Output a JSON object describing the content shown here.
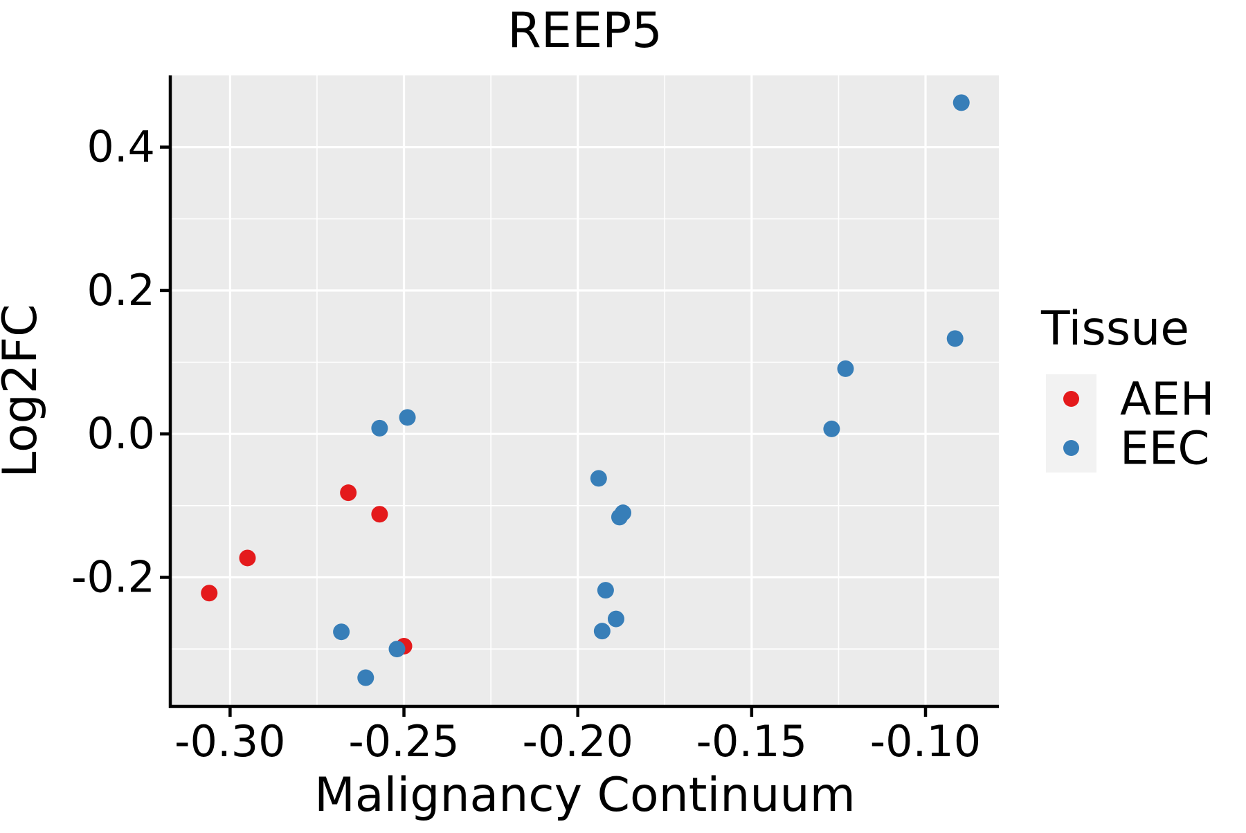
{
  "figure": {
    "title": "REEP5"
  },
  "chart_data": {
    "type": "scatter",
    "title": "REEP5",
    "xlabel": "Malignancy Continuum",
    "ylabel": "Log2FC",
    "xlim": [
      -0.3168,
      -0.0789
    ],
    "ylim": [
      -0.38,
      0.5
    ],
    "grid": true,
    "legend_position": "right",
    "panel_bg": "#EBEBEB",
    "grid_color": "#FFFFFF",
    "legend_key_bg": "#F2F2F2",
    "axis_color": "#000000",
    "x_ticks": {
      "values": [
        -0.3,
        -0.25,
        -0.2,
        -0.15,
        -0.1
      ],
      "labels": [
        "-0.30",
        "-0.25",
        "-0.20",
        "-0.15",
        "-0.10"
      ],
      "minor": [
        -0.275,
        -0.225,
        -0.175,
        -0.125
      ]
    },
    "y_ticks": {
      "values": [
        0.4,
        0.2,
        0.0,
        -0.2
      ],
      "labels": [
        "0.4",
        "0.2",
        "0.0",
        "-0.2"
      ],
      "minor": [
        0.3,
        0.1,
        -0.1,
        -0.3
      ]
    },
    "legend": {
      "title": "Tissue",
      "entries": [
        {
          "label": "AEH",
          "color": "#E41A1C",
          "marker": "circle-icon"
        },
        {
          "label": "EEC",
          "color": "#377EB8",
          "marker": "circle-icon"
        }
      ]
    },
    "series": [
      {
        "name": "AEH",
        "color": "#E41A1C",
        "points": [
          [
            -0.266,
            -0.082
          ],
          [
            -0.257,
            -0.112
          ],
          [
            -0.295,
            -0.173
          ],
          [
            -0.306,
            -0.222
          ],
          [
            -0.25,
            -0.296
          ]
        ]
      },
      {
        "name": "EEC",
        "color": "#377EB8",
        "points": [
          [
            -0.257,
            0.008
          ],
          [
            -0.249,
            0.023
          ],
          [
            -0.268,
            -0.276
          ],
          [
            -0.252,
            -0.3
          ],
          [
            -0.261,
            -0.34
          ],
          [
            -0.194,
            -0.062
          ],
          [
            -0.187,
            -0.11
          ],
          [
            -0.188,
            -0.116
          ],
          [
            -0.192,
            -0.218
          ],
          [
            -0.189,
            -0.258
          ],
          [
            -0.193,
            -0.275
          ],
          [
            -0.123,
            0.091
          ],
          [
            -0.127,
            0.007
          ],
          [
            -0.0915,
            0.133
          ],
          [
            -0.0897,
            0.462
          ]
        ]
      }
    ]
  }
}
